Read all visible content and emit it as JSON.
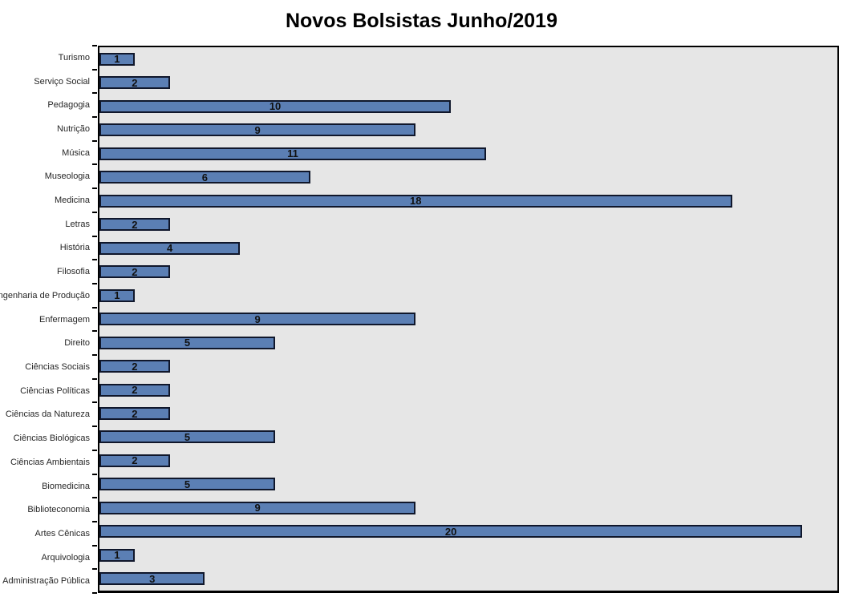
{
  "title": "Novos Bolsistas Junho/2019",
  "chart_data": {
    "type": "bar",
    "orientation": "horizontal",
    "title": "Novos Bolsistas Junho/2019",
    "categories": [
      "Turismo",
      "Serviço Social",
      "Pedagogia",
      "Nutrição",
      "Música",
      "Museologia",
      "Medicina",
      "Letras",
      "História",
      "Filosofia",
      "Engenharia de Produção",
      "Enfermagem",
      "Direito",
      "Ciências Sociais",
      "Ciências Políticas",
      "Ciências da Natureza",
      "Ciências Biológicas",
      "Ciências Ambientais",
      "Biomedicina",
      "Biblioteconomia",
      "Artes Cênicas",
      "Arquivologia",
      "Administração Pública"
    ],
    "values": [
      1,
      2,
      10,
      9,
      11,
      6,
      18,
      2,
      4,
      2,
      1,
      9,
      5,
      2,
      2,
      2,
      5,
      2,
      5,
      9,
      20,
      1,
      3
    ],
    "xlabel": "",
    "ylabel": "",
    "xlim": [
      0,
      21
    ],
    "grid": false,
    "legend": false,
    "data_labels": "inside-center",
    "colors": {
      "bar_fill": "#5b7fb4",
      "bar_border": "#10172b",
      "plot_background": "#e6e6e6",
      "plot_border": "#000000",
      "title_text": "#000000",
      "label_text": "#262626",
      "value_text": "#111111"
    }
  }
}
